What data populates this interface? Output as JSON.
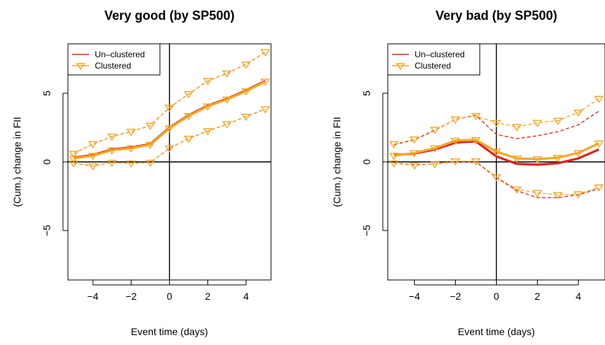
{
  "chart_data": [
    {
      "type": "line",
      "title": "Very good (by SP500)",
      "xlabel": "Event time (days)",
      "ylabel": "(Cum.) change in FII",
      "xlim": [
        -5.3,
        5.3
      ],
      "ylim": [
        -8.6,
        8.6
      ],
      "xticks": [
        -4,
        -2,
        0,
        2,
        4
      ],
      "yticks": [
        -5,
        0,
        5
      ],
      "x": [
        -5,
        -4,
        -3,
        -2,
        -1,
        0,
        1,
        2,
        3,
        4,
        5
      ],
      "series": [
        {
          "name": "Un–clustered",
          "color": "#dd2222",
          "role": "estimate",
          "values": [
            0.3,
            0.5,
            0.9,
            1.05,
            1.3,
            2.5,
            3.4,
            4.1,
            4.6,
            5.2,
            5.9
          ]
        },
        {
          "name": "",
          "color": "#dd2222",
          "role": "upper-ci",
          "values": [
            0.6,
            1.3,
            1.85,
            2.2,
            2.65,
            3.95,
            4.95,
            5.9,
            6.45,
            7.1,
            8.0
          ]
        },
        {
          "name": "",
          "color": "#dd2222",
          "role": "lower-ci",
          "values": [
            -0.1,
            -0.3,
            -0.05,
            -0.1,
            -0.05,
            1.0,
            1.7,
            2.25,
            2.75,
            3.3,
            3.85
          ]
        },
        {
          "name": "Clustered",
          "color": "#f5a623",
          "role": "estimate",
          "values": [
            0.25,
            0.45,
            0.85,
            1.0,
            1.25,
            2.45,
            3.35,
            4.05,
            4.55,
            5.15,
            5.85
          ]
        },
        {
          "name": "",
          "color": "#f5a623",
          "role": "upper-ci",
          "values": [
            0.6,
            1.3,
            1.85,
            2.2,
            2.65,
            3.95,
            4.95,
            5.9,
            6.45,
            7.1,
            8.0
          ]
        },
        {
          "name": "",
          "color": "#f5a623",
          "role": "lower-ci",
          "values": [
            -0.1,
            -0.3,
            -0.05,
            -0.1,
            -0.05,
            1.0,
            1.7,
            2.25,
            2.75,
            3.3,
            3.85
          ]
        }
      ],
      "reference_lines": {
        "x": 0,
        "y": 0
      },
      "legend": {
        "position": "top-left",
        "entries": [
          {
            "label": "Un–clustered",
            "color": "#dd2222",
            "marker": "line"
          },
          {
            "label": "Clustered",
            "color": "#f5a623",
            "marker": "line-triangle-down"
          }
        ]
      }
    },
    {
      "type": "line",
      "title": "Very bad (by SP500)",
      "xlabel": "Event time (days)",
      "ylabel": "(Cum.) change in FII",
      "xlim": [
        -5.3,
        5.3
      ],
      "ylim": [
        -8.6,
        8.6
      ],
      "xticks": [
        -4,
        -2,
        0,
        2,
        4
      ],
      "yticks": [
        -5,
        0,
        5
      ],
      "x": [
        -5,
        -4,
        -3,
        -2,
        -1,
        0,
        1,
        2,
        3,
        4,
        5
      ],
      "series": [
        {
          "name": "Un–clustered",
          "color": "#dd2222",
          "role": "estimate",
          "values": [
            0.5,
            0.6,
            0.9,
            1.4,
            1.5,
            0.4,
            -0.15,
            -0.2,
            -0.1,
            0.25,
            0.9
          ]
        },
        {
          "name": "",
          "color": "#dd2222",
          "role": "upper-ci",
          "values": [
            1.25,
            1.6,
            2.3,
            3.1,
            3.4,
            2.0,
            1.7,
            1.9,
            2.2,
            2.7,
            3.7
          ]
        },
        {
          "name": "",
          "color": "#dd2222",
          "role": "lower-ci",
          "values": [
            -0.1,
            -0.2,
            -0.15,
            0.0,
            0.0,
            -1.15,
            -2.1,
            -2.6,
            -2.6,
            -2.4,
            -1.95
          ]
        },
        {
          "name": "Clustered",
          "color": "#f5a623",
          "role": "estimate",
          "values": [
            0.45,
            0.65,
            1.0,
            1.55,
            1.6,
            0.75,
            0.25,
            0.2,
            0.3,
            0.65,
            1.35
          ]
        },
        {
          "name": "",
          "color": "#f5a623",
          "role": "upper-ci",
          "values": [
            1.3,
            1.65,
            2.35,
            3.1,
            3.35,
            2.85,
            2.55,
            2.85,
            3.0,
            3.6,
            4.6
          ]
        },
        {
          "name": "",
          "color": "#f5a623",
          "role": "lower-ci",
          "values": [
            -0.1,
            -0.25,
            -0.15,
            0.05,
            0.05,
            -1.1,
            -2.0,
            -2.25,
            -2.4,
            -2.35,
            -1.85
          ]
        }
      ],
      "reference_lines": {
        "x": 0,
        "y": 0
      },
      "legend": {
        "position": "top-left",
        "entries": [
          {
            "label": "Un–clustered",
            "color": "#dd2222",
            "marker": "line"
          },
          {
            "label": "Clustered",
            "color": "#f5a623",
            "marker": "line-triangle-down"
          }
        ]
      }
    }
  ]
}
